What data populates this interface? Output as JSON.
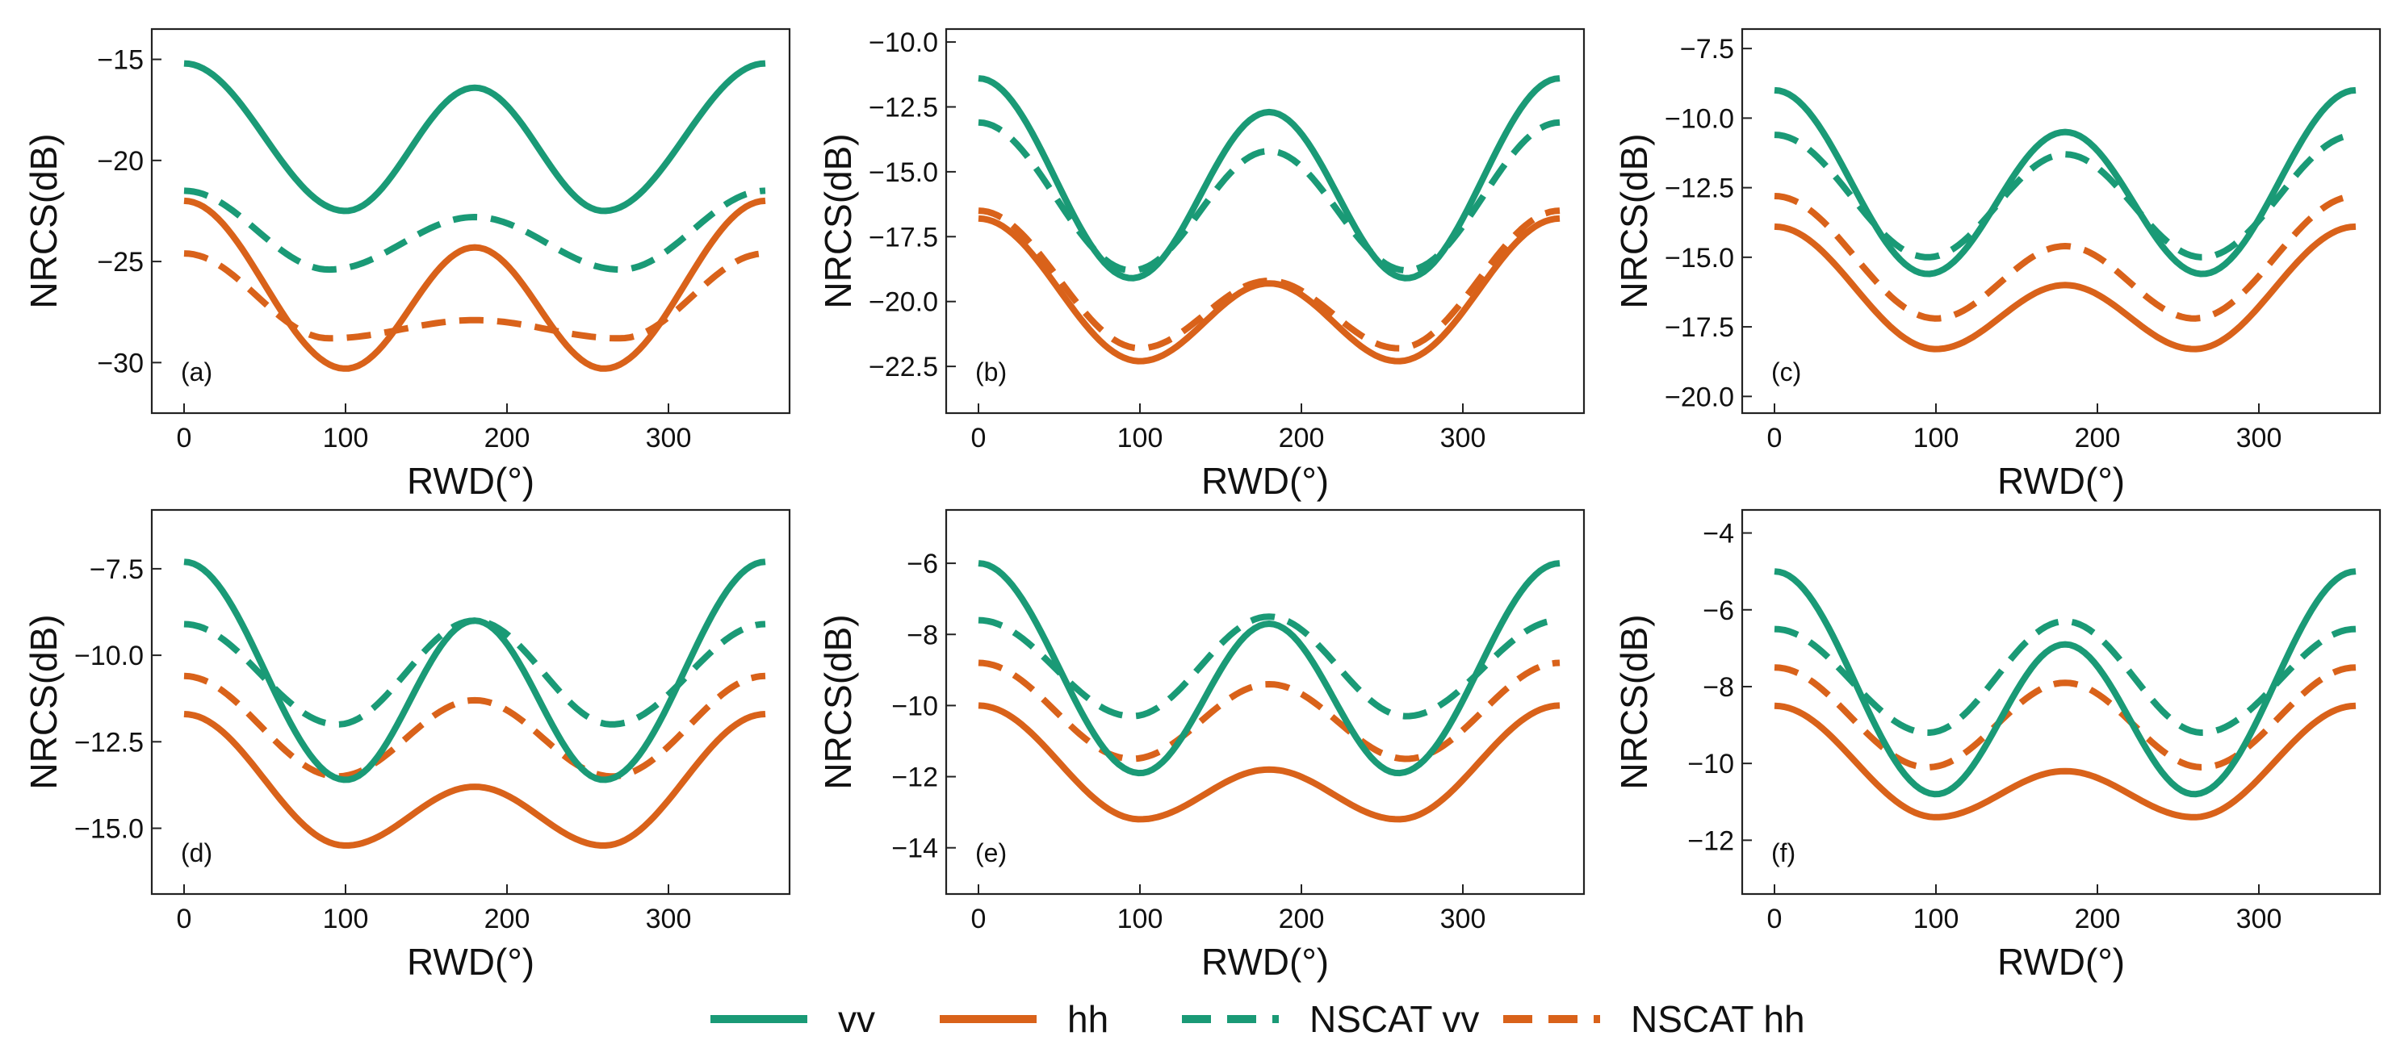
{
  "legend": [
    {
      "key": "vv",
      "label": "vv",
      "color": "#1a9a76",
      "dashed": false
    },
    {
      "key": "hh",
      "label": "hh",
      "color": "#d9621a",
      "dashed": false
    },
    {
      "key": "nvv",
      "label": "NSCAT vv",
      "color": "#1a9a76",
      "dashed": true
    },
    {
      "key": "nhh",
      "label": "NSCAT hh",
      "color": "#d9621a",
      "dashed": true
    }
  ],
  "chart_data": [
    {
      "type": "line",
      "panel": "(a)",
      "xlabel": "RWD(°)",
      "ylabel": "NRCS(dB)",
      "xlim": [
        -20,
        375
      ],
      "ylim": [
        -32.5,
        -13.5
      ],
      "xticks": [
        0,
        100,
        200,
        300
      ],
      "xtick_labels": [
        "0",
        "100",
        "200",
        "300"
      ],
      "yticks": [
        -15,
        -20,
        -25,
        -30
      ],
      "ytick_labels": [
        "-15",
        "-20",
        "-25",
        "-30"
      ],
      "series": [
        {
          "key": "vv",
          "name": "vv",
          "x": [
            0,
            100,
            180,
            260,
            360
          ],
          "values": [
            -15.2,
            -22.5,
            -16.4,
            -22.5,
            -15.2
          ]
        },
        {
          "key": "hh",
          "name": "hh",
          "x": [
            0,
            100,
            180,
            260,
            360
          ],
          "values": [
            -22.0,
            -30.3,
            -24.3,
            -30.3,
            -22.0
          ]
        },
        {
          "key": "nvv",
          "name": "NSCAT vv",
          "x": [
            0,
            90,
            180,
            270,
            360
          ],
          "values": [
            -21.5,
            -25.4,
            -22.8,
            -25.4,
            -21.5
          ]
        },
        {
          "key": "nhh",
          "name": "NSCAT hh",
          "x": [
            0,
            90,
            180,
            270,
            360
          ],
          "values": [
            -24.6,
            -28.8,
            -27.9,
            -28.8,
            -24.6
          ]
        }
      ]
    },
    {
      "type": "line",
      "panel": "(b)",
      "xlabel": "RWD(°)",
      "ylabel": "NRCS(dB)",
      "xlim": [
        -20,
        375
      ],
      "ylim": [
        -24.3,
        -9.5
      ],
      "xticks": [
        0,
        100,
        200,
        300
      ],
      "xtick_labels": [
        "0",
        "100",
        "200",
        "300"
      ],
      "yticks": [
        -10,
        -12.5,
        -15,
        -17.5,
        -20,
        -22.5
      ],
      "ytick_labels": [
        "-10.0",
        "-12.5",
        "-15.0",
        "-17.5",
        "-20.0",
        "-22.5"
      ],
      "series": [
        {
          "key": "vv",
          "name": "vv",
          "x": [
            0,
            95,
            180,
            265,
            360
          ],
          "values": [
            -11.4,
            -19.1,
            -12.7,
            -19.1,
            -11.4
          ]
        },
        {
          "key": "hh",
          "name": "hh",
          "x": [
            0,
            100,
            180,
            260,
            360
          ],
          "values": [
            -16.8,
            -22.3,
            -19.3,
            -22.3,
            -16.8
          ]
        },
        {
          "key": "nvv",
          "name": "NSCAT vv",
          "x": [
            0,
            95,
            180,
            265,
            360
          ],
          "values": [
            -13.1,
            -18.8,
            -14.2,
            -18.8,
            -13.1
          ]
        },
        {
          "key": "nhh",
          "name": "NSCAT hh",
          "x": [
            0,
            100,
            180,
            260,
            360
          ],
          "values": [
            -16.5,
            -21.8,
            -19.2,
            -21.8,
            -16.5
          ]
        }
      ]
    },
    {
      "type": "line",
      "panel": "(c)",
      "xlabel": "RWD(°)",
      "ylabel": "NRCS(dB)",
      "xlim": [
        -20,
        375
      ],
      "ylim": [
        -20.6,
        -6.8
      ],
      "xticks": [
        0,
        100,
        200,
        300
      ],
      "xtick_labels": [
        "0",
        "100",
        "200",
        "300"
      ],
      "yticks": [
        -7.5,
        -10,
        -12.5,
        -15,
        -17.5,
        -20
      ],
      "ytick_labels": [
        "-7.5",
        "-10.0",
        "-12.5",
        "-15.0",
        "-17.5",
        "-20.0"
      ],
      "series": [
        {
          "key": "vv",
          "name": "vv",
          "x": [
            0,
            95,
            180,
            265,
            360
          ],
          "values": [
            -9.0,
            -15.6,
            -10.5,
            -15.6,
            -9.0
          ]
        },
        {
          "key": "hh",
          "name": "hh",
          "x": [
            0,
            100,
            180,
            260,
            360
          ],
          "values": [
            -13.9,
            -18.3,
            -16.0,
            -18.3,
            -13.9
          ]
        },
        {
          "key": "nvv",
          "name": "NSCAT vv",
          "x": [
            0,
            95,
            180,
            265,
            360
          ],
          "values": [
            -10.6,
            -15.0,
            -11.3,
            -15.0,
            -10.6
          ]
        },
        {
          "key": "nhh",
          "name": "NSCAT hh",
          "x": [
            0,
            100,
            180,
            260,
            360
          ],
          "values": [
            -12.8,
            -17.2,
            -14.6,
            -17.2,
            -12.8
          ]
        }
      ]
    },
    {
      "type": "line",
      "panel": "(d)",
      "xlabel": "RWD(°)",
      "ylabel": "NRCS(dB)",
      "xlim": [
        -20,
        375
      ],
      "ylim": [
        -16.9,
        -5.8
      ],
      "xticks": [
        0,
        100,
        200,
        300
      ],
      "xtick_labels": [
        "0",
        "100",
        "200",
        "300"
      ],
      "yticks": [
        -7.5,
        -10,
        -12.5,
        -15
      ],
      "ytick_labels": [
        "-7.5",
        "-10.0",
        "-12.5",
        "-15.0"
      ],
      "series": [
        {
          "key": "vv",
          "name": "vv",
          "x": [
            0,
            100,
            180,
            260,
            360
          ],
          "values": [
            -7.3,
            -13.6,
            -9.0,
            -13.6,
            -7.3
          ]
        },
        {
          "key": "hh",
          "name": "hh",
          "x": [
            0,
            100,
            180,
            260,
            360
          ],
          "values": [
            -11.7,
            -15.5,
            -13.8,
            -15.5,
            -11.7
          ]
        },
        {
          "key": "nvv",
          "name": "NSCAT vv",
          "x": [
            0,
            95,
            180,
            265,
            360
          ],
          "values": [
            -9.1,
            -12.0,
            -9.0,
            -12.0,
            -9.1
          ]
        },
        {
          "key": "nhh",
          "name": "NSCAT hh",
          "x": [
            0,
            95,
            180,
            265,
            360
          ],
          "values": [
            -10.6,
            -13.5,
            -11.3,
            -13.5,
            -10.6
          ]
        }
      ]
    },
    {
      "type": "line",
      "panel": "(e)",
      "xlabel": "RWD(°)",
      "ylabel": "NRCS(dB)",
      "xlim": [
        -20,
        375
      ],
      "ylim": [
        -15.3,
        -4.5
      ],
      "xticks": [
        0,
        100,
        200,
        300
      ],
      "xtick_labels": [
        "0",
        "100",
        "200",
        "300"
      ],
      "yticks": [
        -6,
        -8,
        -10,
        -12,
        -14
      ],
      "ytick_labels": [
        "-6",
        "-8",
        "-10",
        "-12",
        "-14"
      ],
      "series": [
        {
          "key": "vv",
          "name": "vv",
          "x": [
            0,
            100,
            180,
            260,
            360
          ],
          "values": [
            -6.0,
            -11.9,
            -7.7,
            -11.9,
            -6.0
          ]
        },
        {
          "key": "hh",
          "name": "hh",
          "x": [
            0,
            100,
            180,
            260,
            360
          ],
          "values": [
            -10.0,
            -13.2,
            -11.8,
            -13.2,
            -10.0
          ]
        },
        {
          "key": "nvv",
          "name": "NSCAT vv",
          "x": [
            0,
            95,
            180,
            265,
            360
          ],
          "values": [
            -7.6,
            -10.3,
            -7.5,
            -10.3,
            -7.6
          ]
        },
        {
          "key": "nhh",
          "name": "NSCAT hh",
          "x": [
            0,
            95,
            180,
            265,
            360
          ],
          "values": [
            -8.8,
            -11.5,
            -9.4,
            -11.5,
            -8.8
          ]
        }
      ]
    },
    {
      "type": "line",
      "panel": "(f)",
      "xlabel": "RWD(°)",
      "ylabel": "NRCS(dB)",
      "xlim": [
        -20,
        375
      ],
      "ylim": [
        -13.4,
        -3.4
      ],
      "xticks": [
        0,
        100,
        200,
        300
      ],
      "xtick_labels": [
        "0",
        "100",
        "200",
        "300"
      ],
      "yticks": [
        -4,
        -6,
        -8,
        -10,
        -12
      ],
      "ytick_labels": [
        "-4",
        "-6",
        "-8",
        "-10",
        "-12"
      ],
      "series": [
        {
          "key": "vv",
          "name": "vv",
          "x": [
            0,
            100,
            180,
            260,
            360
          ],
          "values": [
            -5.0,
            -10.8,
            -6.9,
            -10.8,
            -5.0
          ]
        },
        {
          "key": "hh",
          "name": "hh",
          "x": [
            0,
            100,
            180,
            260,
            360
          ],
          "values": [
            -8.5,
            -11.4,
            -10.2,
            -11.4,
            -8.5
          ]
        },
        {
          "key": "nvv",
          "name": "NSCAT vv",
          "x": [
            0,
            95,
            180,
            265,
            360
          ],
          "values": [
            -6.5,
            -9.2,
            -6.3,
            -9.2,
            -6.5
          ]
        },
        {
          "key": "nhh",
          "name": "NSCAT hh",
          "x": [
            0,
            95,
            180,
            265,
            360
          ],
          "values": [
            -7.5,
            -10.1,
            -7.9,
            -10.1,
            -7.5
          ]
        }
      ]
    }
  ]
}
